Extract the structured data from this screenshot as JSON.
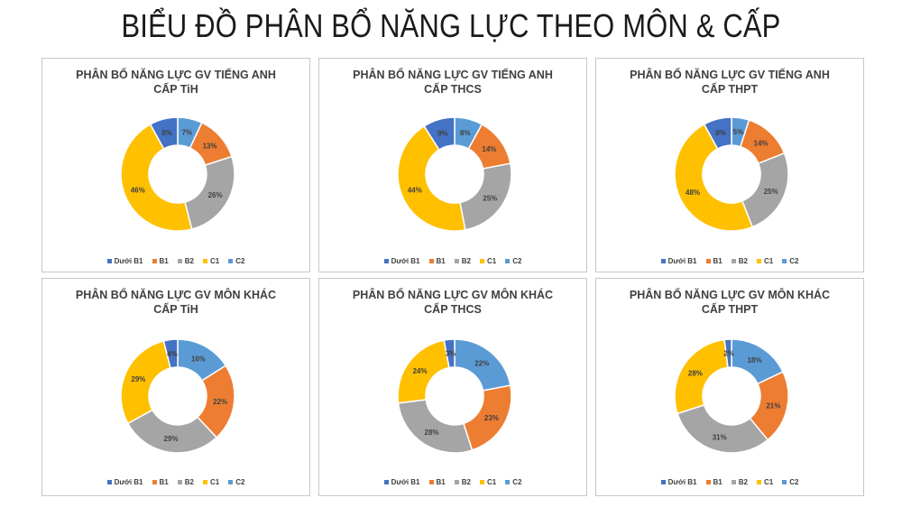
{
  "page": {
    "title": "BIỂU ĐỒ PHÂN BỔ NĂNG LỰC THEO MÔN & CẤP"
  },
  "colors": {
    "Dưới B1": "#4472c4",
    "B1": "#ed7d31",
    "B2": "#a5a5a5",
    "C1": "#ffc000",
    "C2": "#5b9bd5"
  },
  "chart_data": [
    {
      "type": "pie",
      "title_line1": "PHÂN BỔ NĂNG LỰC GV TIẾNG ANH",
      "title_line2": "CẤP TiH",
      "categories": [
        "C2",
        "B1",
        "B2",
        "C1",
        "Dưới B1"
      ],
      "values": [
        7,
        13,
        26,
        46,
        8
      ],
      "labels": [
        "7%",
        "13%",
        "26%",
        "46%",
        "8%"
      ],
      "legend": [
        "Dưới B1",
        "B1",
        "B2",
        "C1",
        "C2"
      ]
    },
    {
      "type": "pie",
      "title_line1": "PHÂN BỔ NĂNG LỰC GV TIẾNG ANH",
      "title_line2": "CẤP THCS",
      "categories": [
        "C2",
        "B1",
        "B2",
        "C1",
        "Dưới B1"
      ],
      "values": [
        8,
        14,
        25,
        44,
        9
      ],
      "labels": [
        "8%",
        "14%",
        "25%",
        "44%",
        "9%"
      ],
      "legend": [
        "Dưới B1",
        "B1",
        "B2",
        "C1",
        "C2"
      ]
    },
    {
      "type": "pie",
      "title_line1": "PHÂN BỔ NĂNG LỰC GV TIẾNG ANH",
      "title_line2": "CẤP THPT",
      "categories": [
        "C2",
        "B1",
        "B2",
        "C1",
        "Dưới B1"
      ],
      "values": [
        5,
        14,
        25,
        48,
        8
      ],
      "labels": [
        "5%",
        "14%",
        "25%",
        "48%",
        "8%"
      ],
      "legend": [
        "Dưới B1",
        "B1",
        "B2",
        "C1",
        "C2"
      ]
    },
    {
      "type": "pie",
      "title_line1": "PHÂN BỔ NĂNG LỰC GV MÔN KHÁC",
      "title_line2": "CẤP TiH",
      "categories": [
        "C2",
        "B1",
        "B2",
        "C1",
        "Dưới B1"
      ],
      "values": [
        16,
        22,
        29,
        29,
        4
      ],
      "labels": [
        "16%",
        "22%",
        "29%",
        "29%",
        "4%"
      ],
      "legend": [
        "Dưới B1",
        "B1",
        "B2",
        "C1",
        "C2"
      ]
    },
    {
      "type": "pie",
      "title_line1": "PHÂN BỔ NĂNG LỰC GV MÔN KHÁC",
      "title_line2": "CẤP THCS",
      "categories": [
        "C2",
        "B1",
        "B2",
        "C1",
        "Dưới B1"
      ],
      "values": [
        22,
        23,
        28,
        24,
        3
      ],
      "labels": [
        "22%",
        "23%",
        "28%",
        "24%",
        "3%"
      ],
      "legend": [
        "Dưới B1",
        "B1",
        "B2",
        "C1",
        "C2"
      ]
    },
    {
      "type": "pie",
      "title_line1": "PHÂN BỔ NĂNG LỰC GV MÔN KHÁC",
      "title_line2": "CẤP THPT",
      "categories": [
        "C2",
        "B1",
        "B2",
        "C1",
        "Dưới B1"
      ],
      "values": [
        18,
        21,
        31,
        28,
        2
      ],
      "labels": [
        "18%",
        "21%",
        "31%",
        "28%",
        "2%"
      ],
      "legend": [
        "Dưới B1",
        "B1",
        "B2",
        "C1",
        "C2"
      ]
    }
  ]
}
